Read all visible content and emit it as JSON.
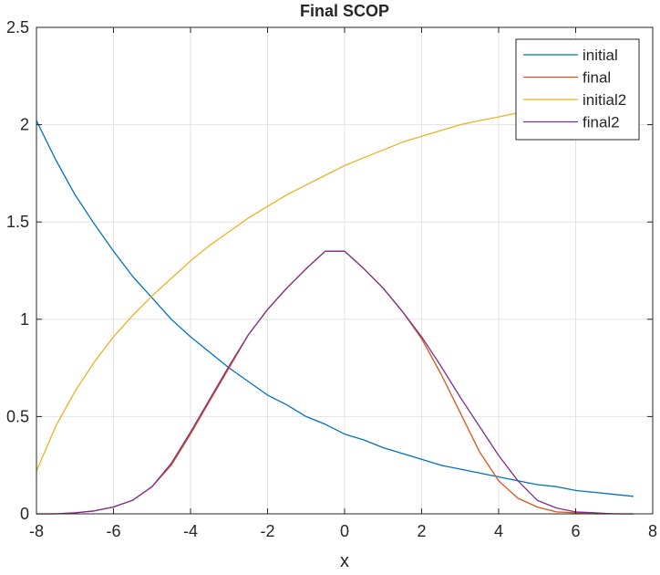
{
  "chart_data": {
    "type": "line",
    "title": "Final SCOP",
    "xlabel": "x",
    "ylabel": "",
    "xlim": [
      -8,
      8
    ],
    "ylim": [
      0,
      2.5
    ],
    "xticks": [
      -8,
      -6,
      -4,
      -2,
      0,
      2,
      4,
      6,
      8
    ],
    "yticks": [
      0,
      0.5,
      1,
      1.5,
      2,
      2.5
    ],
    "xtick_labels": [
      "-8",
      "-6",
      "-4",
      "-2",
      "0",
      "2",
      "4",
      "6",
      "8"
    ],
    "ytick_labels": [
      "0",
      "0.5",
      "1",
      "1.5",
      "2",
      "2.5"
    ],
    "grid": true,
    "legend_position": "top-right",
    "x": [
      -8,
      -7.5,
      -7,
      -6.5,
      -6,
      -5.5,
      -5,
      -4.5,
      -4,
      -3.5,
      -3,
      -2.5,
      -2,
      -1.5,
      -1,
      -0.5,
      0,
      0.5,
      1,
      1.5,
      2,
      2.5,
      3,
      3.5,
      4,
      4.5,
      5,
      5.5,
      6,
      6.5,
      7,
      7.5
    ],
    "series": [
      {
        "name": "initial",
        "color": "#0072BD",
        "values": [
          2.02,
          1.82,
          1.64,
          1.49,
          1.35,
          1.22,
          1.11,
          1.0,
          0.91,
          0.83,
          0.75,
          0.68,
          0.61,
          0.56,
          0.5,
          0.46,
          0.41,
          0.38,
          0.34,
          0.31,
          0.28,
          0.25,
          0.23,
          0.21,
          0.19,
          0.17,
          0.15,
          0.14,
          0.12,
          0.11,
          0.1,
          0.09
        ]
      },
      {
        "name": "final",
        "color": "#D95319",
        "values": [
          0.0,
          0.0,
          0.005,
          0.015,
          0.035,
          0.07,
          0.14,
          0.25,
          0.41,
          0.58,
          0.75,
          0.92,
          1.05,
          1.16,
          1.26,
          1.35,
          1.35,
          1.26,
          1.16,
          1.04,
          0.9,
          0.72,
          0.52,
          0.32,
          0.17,
          0.08,
          0.035,
          0.01,
          0.005,
          0.0,
          0.0,
          0.0
        ]
      },
      {
        "name": "initial2",
        "color": "#EDB120",
        "values": [
          0.22,
          0.45,
          0.63,
          0.78,
          0.91,
          1.02,
          1.12,
          1.21,
          1.3,
          1.38,
          1.45,
          1.52,
          1.58,
          1.64,
          1.69,
          1.74,
          1.79,
          1.83,
          1.87,
          1.91,
          1.94,
          1.97,
          2.0,
          2.02,
          2.04,
          2.06,
          2.08,
          2.1,
          2.11,
          2.12,
          2.14,
          2.15
        ]
      },
      {
        "name": "final2",
        "color": "#7E2F8E",
        "values": [
          0.0,
          0.0,
          0.005,
          0.015,
          0.035,
          0.07,
          0.14,
          0.26,
          0.42,
          0.59,
          0.76,
          0.92,
          1.05,
          1.16,
          1.26,
          1.35,
          1.35,
          1.26,
          1.16,
          1.04,
          0.91,
          0.76,
          0.6,
          0.45,
          0.3,
          0.17,
          0.07,
          0.03,
          0.01,
          0.005,
          0.0,
          0.0
        ]
      }
    ]
  }
}
